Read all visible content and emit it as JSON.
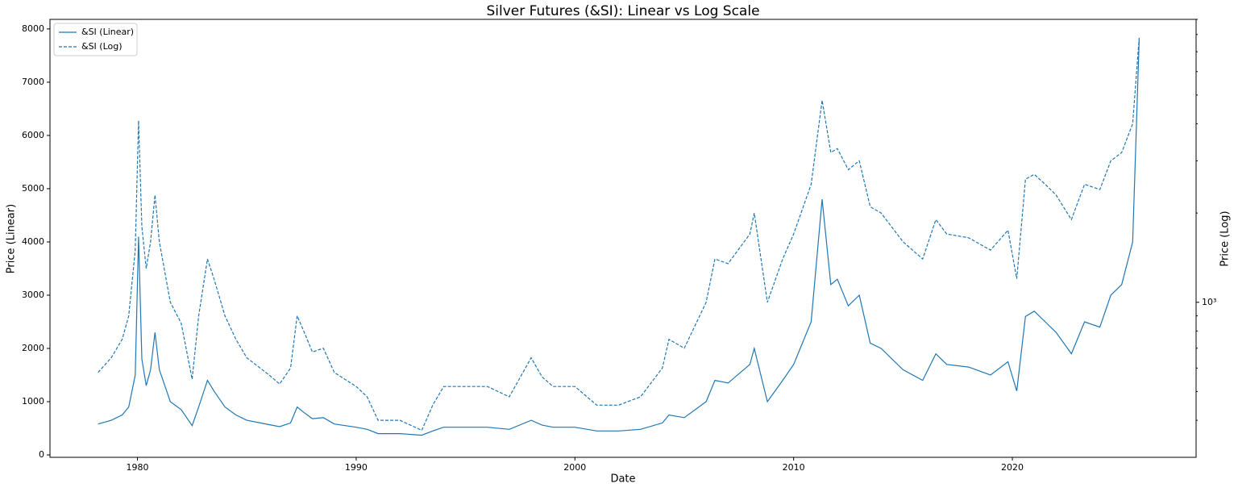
{
  "chart_data": {
    "type": "line",
    "title": "Silver Futures (&SI): Linear vs Log Scale",
    "x_label": "Date",
    "y_label": "Price (Linear)",
    "y2_label": "Price (Log)",
    "x": [
      1978.2,
      1978.8,
      1979.3,
      1979.6,
      1979.9,
      1980.05,
      1980.2,
      1980.4,
      1980.6,
      1980.8,
      1981.0,
      1981.5,
      1982.0,
      1982.5,
      1982.8,
      1983.2,
      1983.5,
      1984.0,
      1984.5,
      1985.0,
      1986.0,
      1986.5,
      1987.0,
      1987.3,
      1987.6,
      1988.0,
      1988.5,
      1989.0,
      1990.0,
      1990.5,
      1991.0,
      1992.0,
      1993.0,
      1993.5,
      1994.0,
      1995.0,
      1996.0,
      1997.0,
      1998.0,
      1998.5,
      1999.0,
      2000.0,
      2001.0,
      2002.0,
      2003.0,
      2004.0,
      2004.3,
      2005.0,
      2006.0,
      2006.4,
      2007.0,
      2008.0,
      2008.2,
      2008.8,
      2009.5,
      2010.0,
      2010.8,
      2011.3,
      2011.7,
      2012.0,
      2012.5,
      2013.0,
      2013.5,
      2014.0,
      2015.0,
      2015.9,
      2016.5,
      2017.0,
      2018.0,
      2019.0,
      2019.8,
      2020.2,
      2020.6,
      2021.0,
      2021.5,
      2022.0,
      2022.7,
      2023.3,
      2024.0,
      2024.5,
      2025.0,
      2025.5,
      2025.8
    ],
    "series": [
      {
        "name": "&SI (Linear)",
        "color": "#1f77b4",
        "dash": "solid",
        "axis": "y",
        "values": [
          580,
          650,
          750,
          900,
          1500,
          4100,
          1800,
          1300,
          1600,
          2300,
          1600,
          1000,
          850,
          550,
          900,
          1400,
          1200,
          900,
          750,
          650,
          570,
          530,
          600,
          900,
          800,
          680,
          700,
          580,
          520,
          480,
          400,
          400,
          370,
          450,
          520,
          520,
          520,
          480,
          650,
          560,
          520,
          520,
          450,
          450,
          480,
          600,
          750,
          700,
          1000,
          1400,
          1350,
          1700,
          2000,
          1000,
          1400,
          1700,
          2500,
          4800,
          3200,
          3300,
          2800,
          3000,
          2100,
          2000,
          1600,
          1400,
          1900,
          1700,
          1650,
          1500,
          1750,
          1200,
          2600,
          2700,
          2500,
          2300,
          1900,
          2500,
          2400,
          3000,
          3200,
          4000,
          7800
        ]
      },
      {
        "name": "&SI (Log)",
        "color": "#1f77b4",
        "dash": "dashed",
        "axis": "y2",
        "values": [
          580,
          650,
          750,
          900,
          1500,
          4100,
          1800,
          1300,
          1600,
          2300,
          1600,
          1000,
          850,
          550,
          900,
          1400,
          1200,
          900,
          750,
          650,
          570,
          530,
          600,
          900,
          800,
          680,
          700,
          580,
          520,
          480,
          400,
          400,
          370,
          450,
          520,
          520,
          520,
          480,
          650,
          560,
          520,
          520,
          450,
          450,
          480,
          600,
          750,
          700,
          1000,
          1400,
          1350,
          1700,
          2000,
          1000,
          1400,
          1700,
          2500,
          4800,
          3200,
          3300,
          2800,
          3000,
          2100,
          2000,
          1600,
          1400,
          1900,
          1700,
          1650,
          1500,
          1750,
          1200,
          2600,
          2700,
          2500,
          2300,
          1900,
          2500,
          2400,
          3000,
          3200,
          4000,
          7800
        ]
      }
    ],
    "xlim": [
      1976,
      2028.4
    ],
    "xticks": [
      1980,
      1990,
      2000,
      2010,
      2020
    ],
    "ylim": [
      -45,
      8180
    ],
    "yticks": [
      0,
      1000,
      2000,
      3000,
      4000,
      5000,
      6000,
      7000,
      8000
    ],
    "y2lim": [
      300,
      9000
    ],
    "y2scale": "log",
    "y2ticks": [
      {
        "value": 1000,
        "label": "10³"
      }
    ],
    "y2minorticks": [
      400,
      500,
      600,
      700,
      800,
      900,
      2000,
      3000,
      4000,
      5000,
      6000,
      7000,
      8000,
      9000
    ],
    "legend": "upper left"
  }
}
